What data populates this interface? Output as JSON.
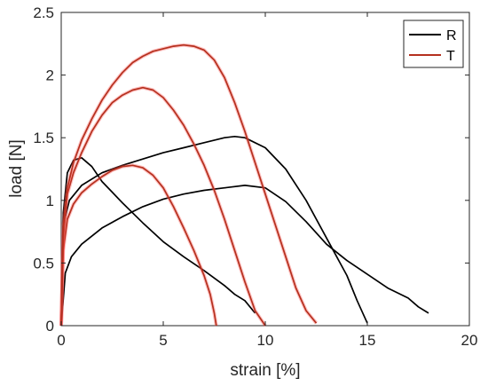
{
  "chart_data": {
    "type": "line",
    "xlabel": "strain [%]",
    "ylabel": "load [N]",
    "xlim": [
      0,
      20
    ],
    "ylim": [
      0,
      2.5
    ],
    "x_ticks": [
      "0",
      "5",
      "10",
      "15",
      "20"
    ],
    "y_ticks": [
      "0",
      "0.5",
      "1",
      "1.5",
      "2",
      "2.5"
    ],
    "grid": false,
    "legend_position": "top-right",
    "legend": [
      {
        "name": "R",
        "color": "#000000"
      },
      {
        "name": "T",
        "color": "#b5301e"
      }
    ],
    "series": [
      {
        "group": "R",
        "color": "#000000",
        "x": [
          0,
          0.1,
          0.3,
          0.6,
          1.0,
          1.5,
          2.0,
          3.0,
          4.0,
          5.0,
          6.0,
          7.0,
          8.0,
          8.5,
          9.0,
          9.5
        ],
        "y": [
          0,
          0.9,
          1.22,
          1.32,
          1.34,
          1.27,
          1.15,
          0.98,
          0.82,
          0.67,
          0.55,
          0.44,
          0.32,
          0.25,
          0.2,
          0.1
        ]
      },
      {
        "group": "R",
        "color": "#000000",
        "x": [
          0,
          0.1,
          0.4,
          1.0,
          2.0,
          3.0,
          4.0,
          5.0,
          6.0,
          7.0,
          8.0,
          8.5,
          9.0,
          10.0,
          11.0,
          12.0,
          13.0,
          14.0,
          14.5,
          15.0
        ],
        "y": [
          0,
          0.8,
          1.0,
          1.12,
          1.22,
          1.28,
          1.33,
          1.38,
          1.42,
          1.46,
          1.5,
          1.51,
          1.5,
          1.42,
          1.25,
          1.0,
          0.7,
          0.4,
          0.2,
          0.02
        ]
      },
      {
        "group": "R",
        "color": "#000000",
        "x": [
          0,
          0.2,
          0.5,
          1.0,
          2.0,
          3.0,
          4.0,
          5.0,
          6.0,
          7.0,
          8.0,
          9.0,
          10.0,
          11.0,
          12.0,
          13.0,
          14.0,
          15.0,
          16.0,
          17.0,
          17.5,
          18.0
        ],
        "y": [
          0,
          0.42,
          0.55,
          0.65,
          0.78,
          0.87,
          0.95,
          1.01,
          1.05,
          1.08,
          1.1,
          1.12,
          1.1,
          0.99,
          0.83,
          0.65,
          0.52,
          0.41,
          0.3,
          0.22,
          0.15,
          0.1
        ]
      },
      {
        "group": "T",
        "color": "#b5301e",
        "x": [
          0,
          0.1,
          0.3,
          0.6,
          1.0,
          1.5,
          2.0,
          2.5,
          3.0,
          3.5,
          4.0,
          4.5,
          5.0,
          5.5,
          6.0,
          6.5,
          7.0,
          7.3,
          7.5,
          7.6
        ],
        "y": [
          0,
          0.6,
          0.85,
          0.97,
          1.06,
          1.13,
          1.19,
          1.24,
          1.27,
          1.28,
          1.26,
          1.2,
          1.1,
          0.95,
          0.78,
          0.6,
          0.4,
          0.25,
          0.1,
          0
        ]
      },
      {
        "group": "T",
        "color": "#b5301e",
        "x": [
          0,
          0.1,
          0.3,
          0.6,
          1.0,
          1.5,
          2.0,
          2.5,
          3.0,
          3.5,
          4.0,
          4.5,
          5.0,
          5.5,
          6.0,
          6.5,
          7.0,
          7.5,
          8.0,
          8.5,
          9.0,
          9.5,
          10.0
        ],
        "y": [
          0,
          0.7,
          1.05,
          1.22,
          1.38,
          1.55,
          1.68,
          1.78,
          1.84,
          1.88,
          1.9,
          1.88,
          1.82,
          1.72,
          1.6,
          1.45,
          1.28,
          1.08,
          0.85,
          0.6,
          0.35,
          0.12,
          0
        ]
      },
      {
        "group": "T",
        "color": "#b5301e",
        "x": [
          0,
          0.1,
          0.3,
          0.6,
          1.0,
          1.5,
          2.0,
          2.5,
          3.0,
          3.5,
          4.0,
          4.5,
          5.0,
          5.5,
          6.0,
          6.5,
          7.0,
          7.5,
          8.0,
          8.5,
          9.0,
          9.5,
          10.0,
          10.5,
          11.0,
          11.5,
          12.0,
          12.5
        ],
        "y": [
          0,
          0.8,
          1.1,
          1.3,
          1.48,
          1.65,
          1.8,
          1.92,
          2.02,
          2.1,
          2.15,
          2.19,
          2.21,
          2.23,
          2.24,
          2.23,
          2.2,
          2.12,
          1.98,
          1.78,
          1.55,
          1.3,
          1.05,
          0.8,
          0.55,
          0.3,
          0.12,
          0.02
        ]
      }
    ]
  }
}
